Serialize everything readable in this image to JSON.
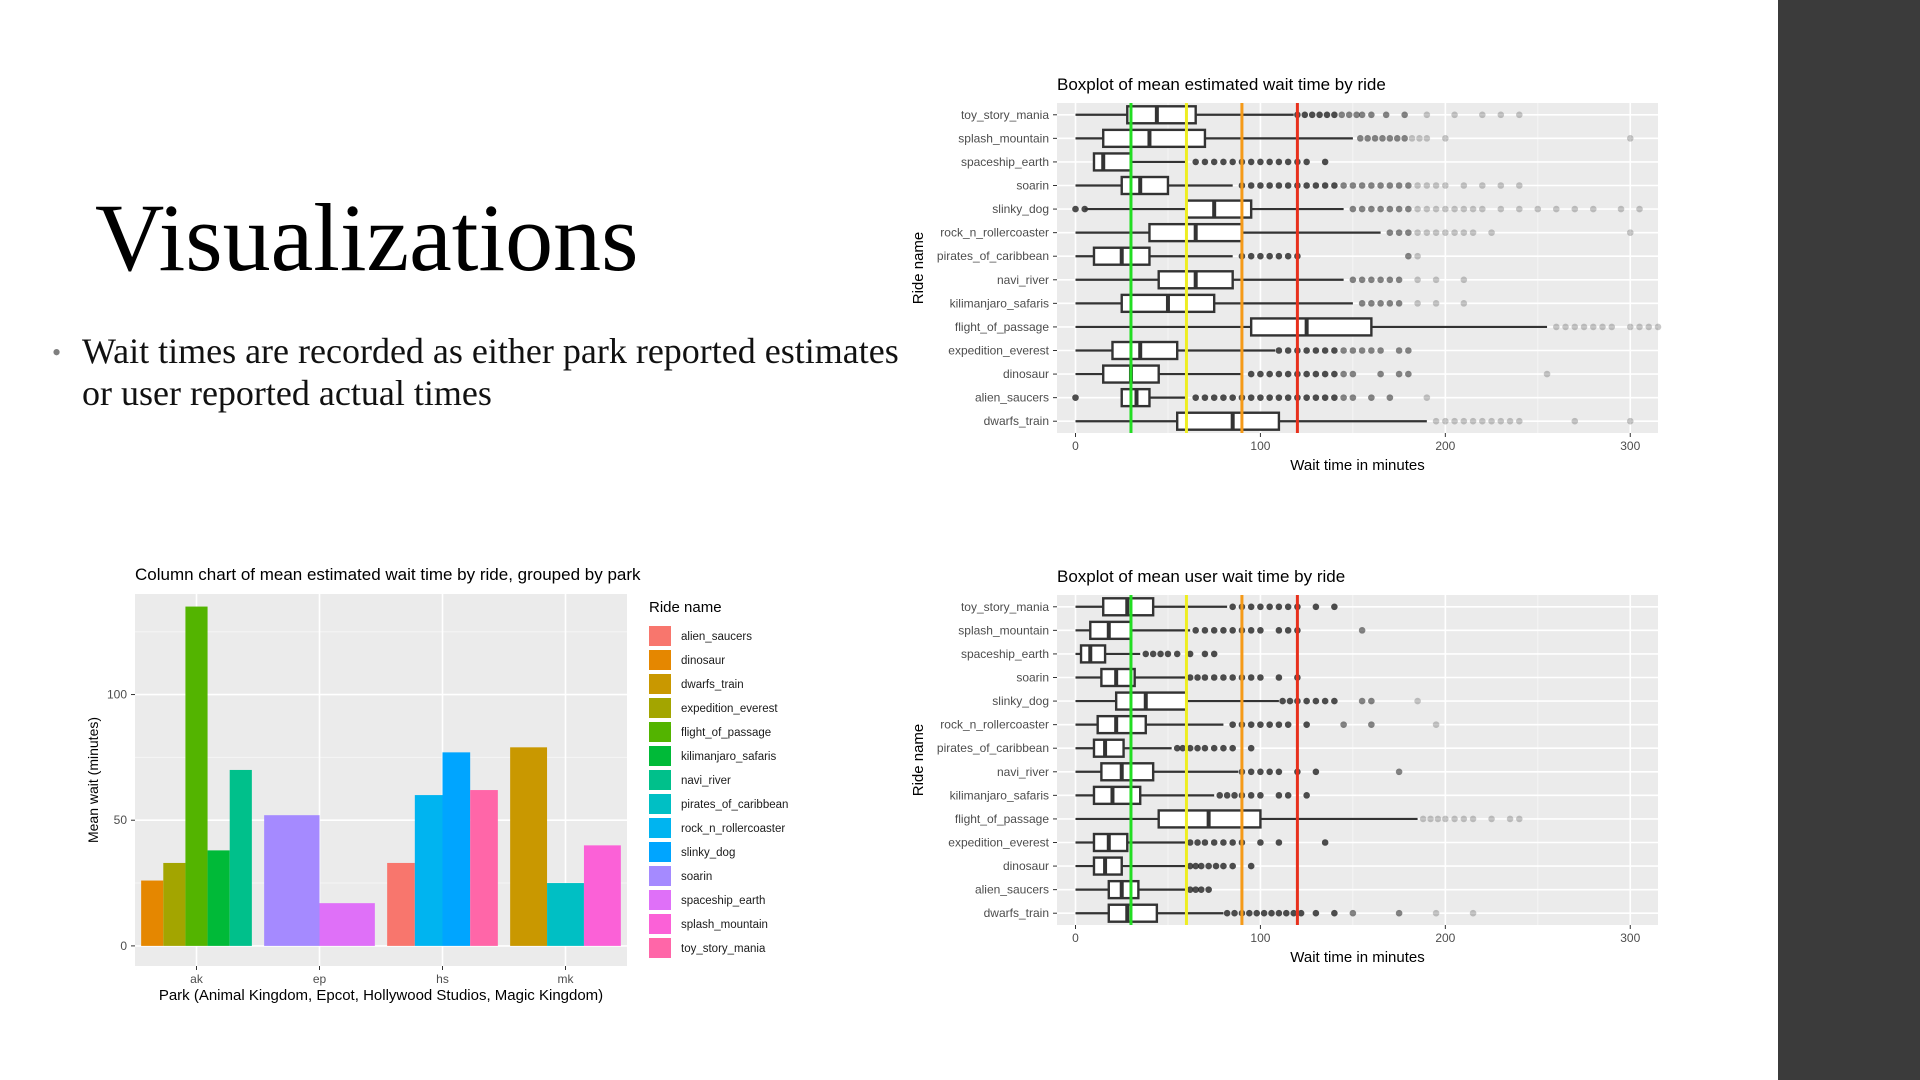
{
  "slide": {
    "title": "Visualizations",
    "bullet": "Wait times are recorded as either park reported estimates or user reported actual times"
  },
  "chart_data": [
    {
      "id": "boxplot_estimated",
      "type": "boxplot",
      "title": "Boxplot of mean estimated wait time by ride",
      "xlabel": "Wait time in minutes",
      "ylabel": "Ride name",
      "xlim": [
        -10,
        315
      ],
      "xticks": [
        0,
        100,
        200,
        300
      ],
      "grid": true,
      "reference_lines": [
        {
          "x": 30,
          "color": "#22dd22"
        },
        {
          "x": 60,
          "color": "#eeee22"
        },
        {
          "x": 90,
          "color": "#f59a18"
        },
        {
          "x": 120,
          "color": "#e8301c"
        }
      ],
      "boxes": [
        {
          "name": "toy_story_mania",
          "whisker_low": 0,
          "q1": 28,
          "median": 44,
          "q3": 65,
          "whisker_high": 118,
          "outliers": [
            120,
            124,
            128,
            132,
            136,
            140,
            144,
            148,
            152,
            155,
            160,
            168,
            178,
            190,
            205,
            220,
            230,
            240
          ]
        },
        {
          "name": "splash_mountain",
          "whisker_low": 0,
          "q1": 15,
          "median": 40,
          "q3": 70,
          "whisker_high": 150,
          "outliers": [
            154,
            158,
            162,
            166,
            170,
            174,
            178,
            182,
            186,
            190,
            200,
            300
          ]
        },
        {
          "name": "spaceship_earth",
          "whisker_low": 10,
          "q1": 10,
          "median": 15,
          "q3": 30,
          "whisker_high": 60,
          "outliers": [
            65,
            70,
            75,
            80,
            85,
            90,
            95,
            100,
            105,
            110,
            115,
            120,
            125,
            135
          ]
        },
        {
          "name": "soarin",
          "whisker_low": 0,
          "q1": 25,
          "median": 35,
          "q3": 50,
          "whisker_high": 85,
          "outliers": [
            90,
            95,
            100,
            105,
            110,
            115,
            120,
            125,
            130,
            135,
            140,
            145,
            150,
            155,
            160,
            165,
            170,
            175,
            180,
            185,
            190,
            195,
            200,
            210,
            220,
            230,
            240
          ]
        },
        {
          "name": "slinky_dog",
          "whisker_low": 5,
          "q1": 60,
          "median": 75,
          "q3": 95,
          "whisker_high": 145,
          "outliers": [
            0,
            5,
            150,
            155,
            160,
            165,
            170,
            175,
            180,
            185,
            190,
            195,
            200,
            205,
            210,
            215,
            220,
            230,
            240,
            250,
            260,
            270,
            280,
            295,
            305
          ]
        },
        {
          "name": "rock_n_rollercoaster",
          "whisker_low": 0,
          "q1": 40,
          "median": 65,
          "q3": 90,
          "whisker_high": 165,
          "outliers": [
            170,
            175,
            180,
            185,
            190,
            195,
            200,
            205,
            210,
            215,
            225,
            300
          ]
        },
        {
          "name": "pirates_of_caribbean",
          "whisker_low": 0,
          "q1": 10,
          "median": 25,
          "q3": 40,
          "whisker_high": 85,
          "outliers": [
            90,
            95,
            100,
            105,
            110,
            115,
            120,
            180,
            185
          ]
        },
        {
          "name": "navi_river",
          "whisker_low": 0,
          "q1": 45,
          "median": 65,
          "q3": 85,
          "whisker_high": 145,
          "outliers": [
            150,
            155,
            160,
            165,
            170,
            175,
            185,
            195,
            210
          ]
        },
        {
          "name": "kilimanjaro_safaris",
          "whisker_low": 0,
          "q1": 25,
          "median": 50,
          "q3": 75,
          "whisker_high": 150,
          "outliers": [
            155,
            160,
            165,
            170,
            175,
            185,
            195,
            210
          ]
        },
        {
          "name": "flight_of_passage",
          "whisker_low": 0,
          "q1": 95,
          "median": 125,
          "q3": 160,
          "whisker_high": 255,
          "outliers": [
            260,
            265,
            270,
            275,
            280,
            285,
            290,
            300,
            305,
            310,
            315
          ]
        },
        {
          "name": "expedition_everest",
          "whisker_low": 0,
          "q1": 20,
          "median": 35,
          "q3": 55,
          "whisker_high": 108,
          "outliers": [
            110,
            115,
            120,
            125,
            130,
            135,
            140,
            145,
            150,
            155,
            160,
            165,
            175,
            180
          ]
        },
        {
          "name": "dinosaur",
          "whisker_low": 0,
          "q1": 15,
          "median": 30,
          "q3": 45,
          "whisker_high": 90,
          "outliers": [
            95,
            100,
            105,
            110,
            115,
            120,
            125,
            130,
            135,
            140,
            145,
            150,
            165,
            175,
            180,
            255
          ]
        },
        {
          "name": "alien_saucers",
          "whisker_low": 25,
          "q1": 25,
          "median": 33,
          "q3": 40,
          "whisker_high": 60,
          "outliers": [
            0,
            65,
            70,
            75,
            80,
            85,
            90,
            95,
            100,
            105,
            110,
            115,
            120,
            125,
            130,
            135,
            140,
            145,
            150,
            160,
            170,
            190
          ]
        },
        {
          "name": "dwarfs_train",
          "whisker_low": 0,
          "q1": 55,
          "median": 85,
          "q3": 110,
          "whisker_high": 190,
          "outliers": [
            195,
            200,
            205,
            210,
            215,
            220,
            225,
            230,
            235,
            240,
            270,
            300
          ]
        }
      ]
    },
    {
      "id": "boxplot_user",
      "type": "boxplot",
      "title": "Boxplot of mean user wait time by ride",
      "xlabel": "Wait time in minutes",
      "ylabel": "Ride name",
      "xlim": [
        -10,
        315
      ],
      "xticks": [
        0,
        100,
        200,
        300
      ],
      "grid": true,
      "reference_lines": [
        {
          "x": 30,
          "color": "#22dd22"
        },
        {
          "x": 60,
          "color": "#eeee22"
        },
        {
          "x": 90,
          "color": "#f59a18"
        },
        {
          "x": 120,
          "color": "#e8301c"
        }
      ],
      "boxes": [
        {
          "name": "toy_story_mania",
          "whisker_low": 0,
          "q1": 15,
          "median": 28,
          "q3": 42,
          "whisker_high": 82,
          "outliers": [
            85,
            90,
            95,
            100,
            105,
            110,
            115,
            120,
            130,
            140
          ]
        },
        {
          "name": "splash_mountain",
          "whisker_low": 0,
          "q1": 8,
          "median": 18,
          "q3": 30,
          "whisker_high": 62,
          "outliers": [
            65,
            70,
            75,
            80,
            85,
            90,
            95,
            100,
            110,
            115,
            120,
            155
          ]
        },
        {
          "name": "spaceship_earth",
          "whisker_low": 0,
          "q1": 3,
          "median": 8,
          "q3": 16,
          "whisker_high": 35,
          "outliers": [
            38,
            42,
            46,
            50,
            55,
            62,
            70,
            75
          ]
        },
        {
          "name": "soarin",
          "whisker_low": 0,
          "q1": 14,
          "median": 22,
          "q3": 32,
          "whisker_high": 60,
          "outliers": [
            62,
            66,
            70,
            75,
            80,
            85,
            90,
            95,
            100,
            110,
            120
          ]
        },
        {
          "name": "slinky_dog",
          "whisker_low": 0,
          "q1": 22,
          "median": 38,
          "q3": 60,
          "whisker_high": 110,
          "outliers": [
            112,
            116,
            120,
            125,
            130,
            135,
            140,
            155,
            160,
            185
          ]
        },
        {
          "name": "rock_n_rollercoaster",
          "whisker_low": 0,
          "q1": 12,
          "median": 22,
          "q3": 38,
          "whisker_high": 80,
          "outliers": [
            85,
            90,
            95,
            100,
            105,
            110,
            115,
            125,
            145,
            160,
            195
          ]
        },
        {
          "name": "pirates_of_caribbean",
          "whisker_low": 0,
          "q1": 10,
          "median": 16,
          "q3": 26,
          "whisker_high": 52,
          "outliers": [
            55,
            58,
            62,
            66,
            70,
            75,
            80,
            85,
            95
          ]
        },
        {
          "name": "navi_river",
          "whisker_low": 0,
          "q1": 14,
          "median": 25,
          "q3": 42,
          "whisker_high": 88,
          "outliers": [
            90,
            95,
            100,
            105,
            110,
            120,
            130,
            175
          ]
        },
        {
          "name": "kilimanjaro_safaris",
          "whisker_low": 0,
          "q1": 10,
          "median": 20,
          "q3": 35,
          "whisker_high": 75,
          "outliers": [
            78,
            82,
            86,
            90,
            95,
            100,
            110,
            115,
            125
          ]
        },
        {
          "name": "flight_of_passage",
          "whisker_low": 0,
          "q1": 45,
          "median": 72,
          "q3": 100,
          "whisker_high": 185,
          "outliers": [
            188,
            192,
            196,
            200,
            205,
            210,
            215,
            225,
            235,
            240
          ]
        },
        {
          "name": "expedition_everest",
          "whisker_low": 0,
          "q1": 10,
          "median": 18,
          "q3": 28,
          "whisker_high": 60,
          "outliers": [
            62,
            66,
            70,
            75,
            80,
            85,
            90,
            100,
            110,
            135
          ]
        },
        {
          "name": "dinosaur",
          "whisker_low": 0,
          "q1": 10,
          "median": 16,
          "q3": 25,
          "whisker_high": 60,
          "outliers": [
            62,
            65,
            68,
            72,
            76,
            80,
            85,
            95
          ]
        },
        {
          "name": "alien_saucers",
          "whisker_low": 0,
          "q1": 18,
          "median": 25,
          "q3": 34,
          "whisker_high": 60,
          "outliers": [
            62,
            65,
            68,
            72
          ]
        },
        {
          "name": "dwarfs_train",
          "whisker_low": 0,
          "q1": 18,
          "median": 28,
          "q3": 44,
          "whisker_high": 80,
          "outliers": [
            82,
            86,
            90,
            94,
            98,
            102,
            106,
            110,
            114,
            118,
            122,
            130,
            140,
            150,
            175,
            195,
            215
          ]
        }
      ]
    },
    {
      "id": "column_chart",
      "type": "bar",
      "title": "Column chart of mean estimated wait time by ride, grouped by park",
      "xlabel": "Park (Animal Kingdom, Epcot, Hollywood Studios, Magic Kingdom)",
      "ylabel": "Mean wait (minutes)",
      "ylim": [
        -8,
        140
      ],
      "yticks": [
        0,
        50,
        100
      ],
      "grid": true,
      "legend_title": "Ride name",
      "legend_position": "right",
      "categories": [
        "ak",
        "ep",
        "hs",
        "mk"
      ],
      "legend": [
        {
          "name": "alien_saucers",
          "color": "#F8766D"
        },
        {
          "name": "dinosaur",
          "color": "#E58700"
        },
        {
          "name": "dwarfs_train",
          "color": "#C99800"
        },
        {
          "name": "expedition_everest",
          "color": "#A3A500"
        },
        {
          "name": "flight_of_passage",
          "color": "#53B400"
        },
        {
          "name": "kilimanjaro_safaris",
          "color": "#00BA38"
        },
        {
          "name": "navi_river",
          "color": "#00C08B"
        },
        {
          "name": "pirates_of_caribbean",
          "color": "#00BFC4"
        },
        {
          "name": "rock_n_rollercoaster",
          "color": "#00B4F0"
        },
        {
          "name": "slinky_dog",
          "color": "#00A5FF"
        },
        {
          "name": "soarin",
          "color": "#A58AFF"
        },
        {
          "name": "spaceship_earth",
          "color": "#DF70F8"
        },
        {
          "name": "splash_mountain",
          "color": "#FB61D7"
        },
        {
          "name": "toy_story_mania",
          "color": "#FF66A8"
        }
      ],
      "groups": [
        {
          "category": "ak",
          "bars": [
            {
              "ride": "dinosaur",
              "value": 26
            },
            {
              "ride": "expedition_everest",
              "value": 33
            },
            {
              "ride": "flight_of_passage",
              "value": 135
            },
            {
              "ride": "kilimanjaro_safaris",
              "value": 38
            },
            {
              "ride": "navi_river",
              "value": 70
            }
          ]
        },
        {
          "category": "ep",
          "bars": [
            {
              "ride": "soarin",
              "value": 52
            },
            {
              "ride": "spaceship_earth",
              "value": 17
            }
          ]
        },
        {
          "category": "hs",
          "bars": [
            {
              "ride": "alien_saucers",
              "value": 33
            },
            {
              "ride": "rock_n_rollercoaster",
              "value": 60
            },
            {
              "ride": "slinky_dog",
              "value": 77
            },
            {
              "ride": "toy_story_mania",
              "value": 62
            }
          ]
        },
        {
          "category": "mk",
          "bars": [
            {
              "ride": "dwarfs_train",
              "value": 79
            },
            {
              "ride": "pirates_of_caribbean",
              "value": 25
            },
            {
              "ride": "splash_mountain",
              "value": 40
            }
          ]
        }
      ]
    }
  ]
}
